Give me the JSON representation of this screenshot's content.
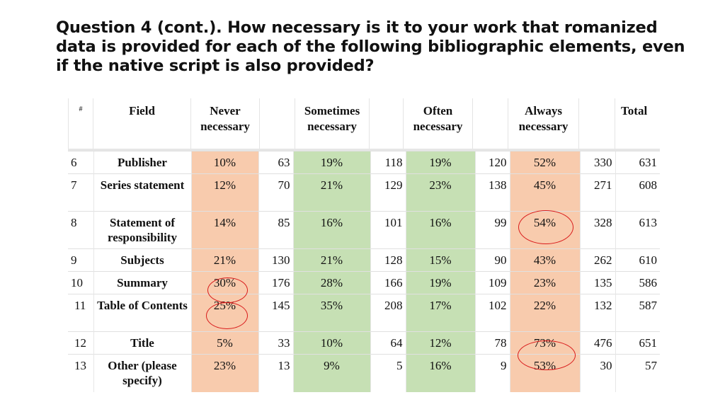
{
  "title": "Question 4 (cont.). How necessary is it to your work that romanized data is provided for each of the following bibliographic elements, even if the native script is also provided?",
  "headers": {
    "hash": "#",
    "field": "Field",
    "never": "Never necessary",
    "sometimes": "Sometimes necessary",
    "often": "Often necessary",
    "always": "Always necessary",
    "total": "Total"
  },
  "rows": [
    {
      "num": "6",
      "field": "Publisher",
      "never_pct": "10%",
      "never_n": "63",
      "sometimes_pct": "19%",
      "sometimes_n": "118",
      "often_pct": "19%",
      "often_n": "120",
      "always_pct": "52%",
      "always_n": "330",
      "total": "631"
    },
    {
      "num": "7",
      "field": "Series statement",
      "never_pct": "12%",
      "never_n": "70",
      "sometimes_pct": "21%",
      "sometimes_n": "129",
      "often_pct": "23%",
      "often_n": "138",
      "always_pct": "45%",
      "always_n": "271",
      "total": "608"
    },
    {
      "num": "8",
      "field": "Statement of responsibility",
      "never_pct": "14%",
      "never_n": "85",
      "sometimes_pct": "16%",
      "sometimes_n": "101",
      "often_pct": "16%",
      "often_n": "99",
      "always_pct": "54%",
      "always_n": "328",
      "total": "613"
    },
    {
      "num": "9",
      "field": "Subjects",
      "never_pct": "21%",
      "never_n": "130",
      "sometimes_pct": "21%",
      "sometimes_n": "128",
      "often_pct": "15%",
      "often_n": "90",
      "always_pct": "43%",
      "always_n": "262",
      "total": "610"
    },
    {
      "num": "10",
      "field": "Summary",
      "never_pct": "30%",
      "never_n": "176",
      "sometimes_pct": "28%",
      "sometimes_n": "166",
      "often_pct": "19%",
      "often_n": "109",
      "always_pct": "23%",
      "always_n": "135",
      "total": "586"
    },
    {
      "num": "11",
      "field": "Table of Contents",
      "never_pct": "25%",
      "never_n": "145",
      "sometimes_pct": "35%",
      "sometimes_n": "208",
      "often_pct": "17%",
      "often_n": "102",
      "always_pct": "22%",
      "always_n": "132",
      "total": "587"
    },
    {
      "num": "12",
      "field": "Title",
      "never_pct": "5%",
      "never_n": "33",
      "sometimes_pct": "10%",
      "sometimes_n": "64",
      "often_pct": "12%",
      "often_n": "78",
      "always_pct": "73%",
      "always_n": "476",
      "total": "651"
    },
    {
      "num": "13",
      "field": "Other (please specify)",
      "never_pct": "23%",
      "never_n": "13",
      "sometimes_pct": "9%",
      "sometimes_n": "5",
      "often_pct": "16%",
      "often_n": "9",
      "always_pct": "53%",
      "always_n": "30",
      "total": "57"
    }
  ],
  "colors": {
    "never": "#f8cbad",
    "sometimes": "#c6e0b4",
    "often": "#c6e0b4",
    "always": "#f8cbad",
    "circle": "#d91b1b"
  }
}
